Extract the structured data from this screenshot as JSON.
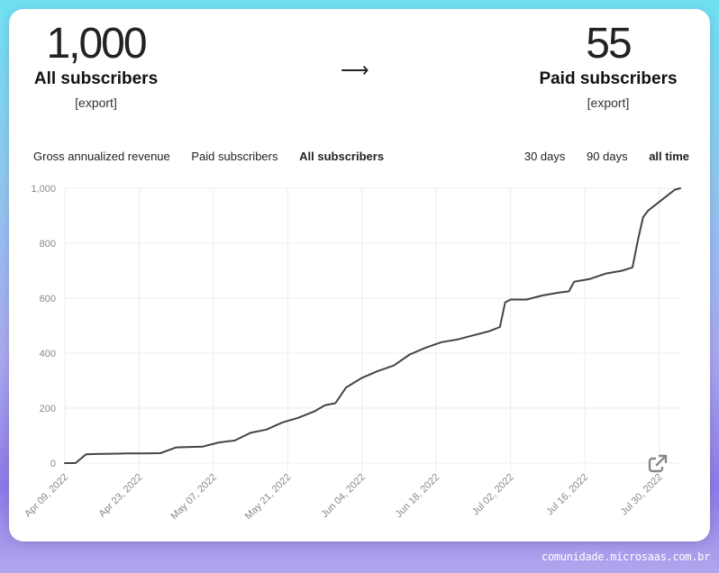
{
  "stats": {
    "all_value": "1,000",
    "all_label": "All subscribers",
    "all_export": "[export]",
    "arrow": "⟶",
    "paid_value": "55",
    "paid_label": "Paid subscribers",
    "paid_export": "[export]"
  },
  "metric_tabs": [
    {
      "label": "Gross annualized revenue",
      "active": false
    },
    {
      "label": "Paid subscribers",
      "active": false
    },
    {
      "label": "All subscribers",
      "active": true
    }
  ],
  "range_tabs": [
    {
      "label": "30 days",
      "active": false
    },
    {
      "label": "90 days",
      "active": false
    },
    {
      "label": "all time",
      "active": true
    }
  ],
  "chart_data": {
    "type": "line",
    "series": [
      {
        "x": [
          "2022-04-09",
          "2022-04-11",
          "2022-04-13",
          "2022-04-15",
          "2022-04-18",
          "2022-04-21",
          "2022-04-24",
          "2022-04-27",
          "2022-04-30",
          "2022-05-02",
          "2022-05-05",
          "2022-05-08",
          "2022-05-11",
          "2022-05-14",
          "2022-05-17",
          "2022-05-20",
          "2022-05-23",
          "2022-05-26",
          "2022-05-28",
          "2022-05-30",
          "2022-06-01",
          "2022-06-04",
          "2022-06-07",
          "2022-06-10",
          "2022-06-13",
          "2022-06-16",
          "2022-06-19",
          "2022-06-22",
          "2022-06-25",
          "2022-06-28",
          "2022-06-30",
          "2022-07-01",
          "2022-07-02",
          "2022-07-05",
          "2022-07-08",
          "2022-07-11",
          "2022-07-13",
          "2022-07-14",
          "2022-07-17",
          "2022-07-20",
          "2022-07-23",
          "2022-07-25",
          "2022-07-26",
          "2022-07-27",
          "2022-07-28",
          "2022-07-30",
          "2022-08-01",
          "2022-08-02",
          "2022-08-03"
        ],
        "values": [
          0,
          0,
          32,
          33,
          34,
          35,
          35,
          36,
          57,
          58,
          60,
          75,
          82,
          110,
          122,
          148,
          165,
          188,
          210,
          218,
          275,
          310,
          335,
          355,
          395,
          420,
          440,
          450,
          465,
          480,
          495,
          585,
          595,
          595,
          610,
          620,
          625,
          660,
          670,
          690,
          700,
          712,
          810,
          895,
          920,
          950,
          980,
          995,
          1000
        ]
      }
    ],
    "xticks": [
      "Apr 09, 2022",
      "Apr 23, 2022",
      "May 07, 2022",
      "May 21, 2022",
      "Jun 04, 2022",
      "Jun 18, 2022",
      "Jul 02, 2022",
      "Jul 16, 2022",
      "Jul 30, 2022"
    ],
    "yticks": [
      "0",
      "200",
      "400",
      "600",
      "800",
      "1,000"
    ],
    "ylim": [
      0,
      1000
    ],
    "xlim": [
      "2022-04-09",
      "2022-08-03"
    ],
    "grid": true,
    "line_color": "#444444"
  },
  "watermark": "comunidade.microsaas.com.br"
}
